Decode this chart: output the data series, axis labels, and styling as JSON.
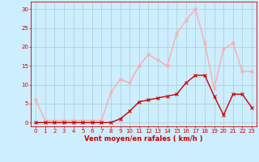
{
  "x": [
    0,
    1,
    2,
    3,
    4,
    5,
    6,
    7,
    8,
    9,
    10,
    11,
    12,
    13,
    14,
    15,
    16,
    17,
    18,
    19,
    20,
    21,
    22,
    23
  ],
  "vent_moyen": [
    0,
    0,
    0,
    0,
    0,
    0,
    0,
    0,
    0,
    1,
    3,
    5.5,
    6,
    6.5,
    7,
    7.5,
    10.5,
    12.5,
    12.5,
    7,
    2,
    7.5,
    7.5,
    4
  ],
  "rafales": [
    6,
    0.5,
    0.5,
    0.5,
    0.5,
    0.5,
    0.5,
    0.5,
    8,
    11.5,
    10.5,
    15,
    18,
    16.5,
    15,
    23.5,
    27,
    30,
    21,
    9,
    19.5,
    21,
    13.5,
    13.5
  ],
  "color_moyen": "#cc0000",
  "color_rafales": "#ffaaaa",
  "bg_color": "#cceeff",
  "grid_color": "#aacccc",
  "xlabel": "Vent moyen/en rafales ( km/h )",
  "ylabel_ticks": [
    0,
    5,
    10,
    15,
    20,
    25,
    30
  ],
  "xlim": [
    -0.5,
    23.5
  ],
  "ylim": [
    -1,
    32
  ],
  "xticks": [
    0,
    1,
    2,
    3,
    4,
    5,
    6,
    7,
    8,
    9,
    10,
    11,
    12,
    13,
    14,
    15,
    16,
    17,
    18,
    19,
    20,
    21,
    22,
    23
  ],
  "marker": "x",
  "linewidth": 1.0,
  "markersize": 3,
  "tick_fontsize": 5,
  "xlabel_fontsize": 6
}
